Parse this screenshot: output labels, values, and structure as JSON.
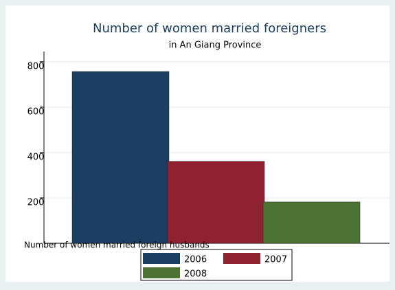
{
  "chart_data": {
    "type": "bar",
    "title": "Number of women married foreigners",
    "subtitle": "in An Giang Province",
    "x_label": "Number of women married foreign husbands",
    "series": [
      {
        "name": "2006",
        "color": "#1a3f63",
        "values": [
          757
        ]
      },
      {
        "name": "2007",
        "color": "#90212e",
        "values": [
          361
        ]
      },
      {
        "name": "2008",
        "color": "#4d7334",
        "values": [
          182
        ]
      }
    ],
    "ylim": [
      0,
      845
    ],
    "yticks": [
      200,
      400,
      600,
      800
    ],
    "grid": true,
    "legend": "bottom"
  }
}
